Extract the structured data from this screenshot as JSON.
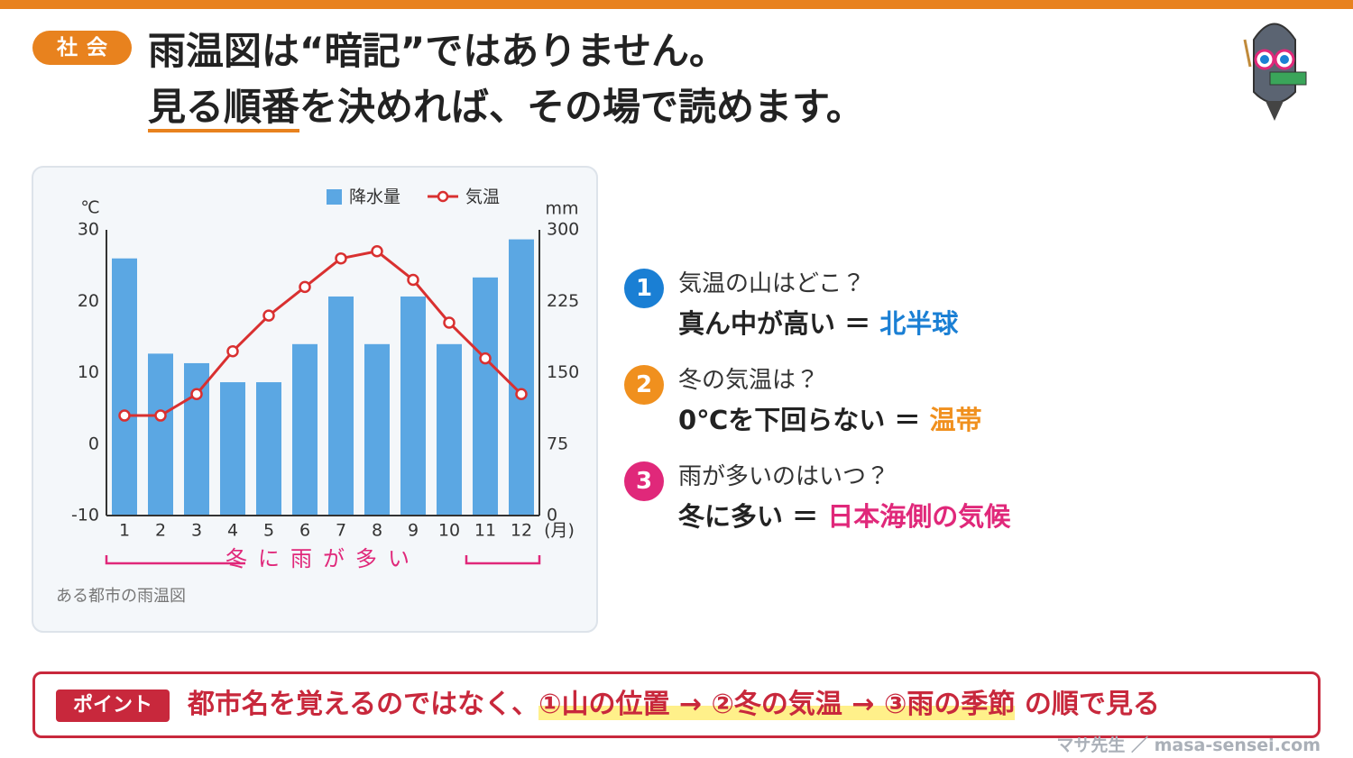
{
  "header": {
    "badge": "社会",
    "title_line1": "雨温図は“暗記”ではありません。",
    "title_line2_underlined": "見る順番",
    "title_line2_rest": "を決めれば、その場で読めます。"
  },
  "chart_data": {
    "type": "combo",
    "categories": [
      "1",
      "2",
      "3",
      "4",
      "5",
      "6",
      "7",
      "8",
      "9",
      "10",
      "11",
      "12"
    ],
    "x_unit": "(月)",
    "y_unit": "℃",
    "y2_unit": "mm",
    "ylim": [
      -10,
      30
    ],
    "yticks": [
      -10,
      0,
      10,
      20,
      30
    ],
    "y2lim": [
      0,
      300
    ],
    "y2ticks": [
      0,
      75,
      150,
      225,
      300
    ],
    "series": [
      {
        "name": "降水量",
        "type": "bar",
        "axis": "y2",
        "color": "#5ba7e3",
        "values": [
          270,
          170,
          160,
          140,
          140,
          180,
          230,
          180,
          230,
          180,
          250,
          290
        ]
      },
      {
        "name": "気温",
        "type": "line",
        "color": "#d93030",
        "values": [
          4,
          4,
          7,
          13,
          18,
          22,
          26,
          27,
          23,
          17,
          12,
          7
        ]
      }
    ],
    "annotation": "冬に雨が多い",
    "caption": "ある都市の雨温図",
    "grid": false
  },
  "points": [
    {
      "number": "1",
      "question": "気温の山はどこ？",
      "answer_prefix": "真ん中が高い ＝ ",
      "answer": "北半球"
    },
    {
      "number": "2",
      "question": "冬の気温は？",
      "answer_prefix": "0℃を下回らない ＝ ",
      "answer": "温帯"
    },
    {
      "number": "3",
      "question": "雨が多いのはいつ？",
      "answer_prefix": "冬に多い ＝ ",
      "answer": "日本海側の気候"
    }
  ],
  "footer_box": {
    "label": "ポイント",
    "text_before": "都市名を覚えるのではなく、",
    "highlight": "①山の位置 → ②冬の気温 → ③雨の季節",
    "text_after": " の順で見る"
  },
  "credit": "マサ先生 ／ masa-sensei.com"
}
